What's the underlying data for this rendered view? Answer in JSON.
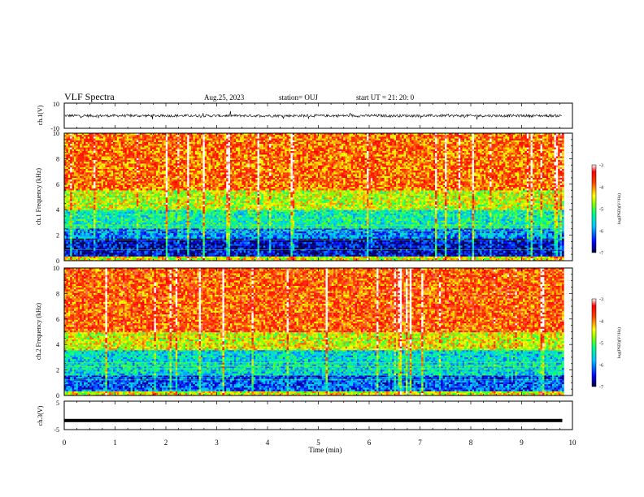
{
  "header": {
    "title": "VLF Spectra",
    "date": "Aug.25, 2023",
    "station": "station= OUJ",
    "start": "start  UT  =   21: 20: 0"
  },
  "chart_data": [
    {
      "type": "line",
      "panel": "ch1-waveform",
      "ylabel": "ch.1(V)",
      "ylim": [
        -10,
        10
      ],
      "yticks": [
        "10",
        "-10"
      ],
      "xlim": [
        0,
        10
      ],
      "baseline": 0,
      "note_series": "dense noisy waveform around 0 V with spikes near ±2 V"
    },
    {
      "type": "heatmap",
      "panel": "ch1-spectrogram",
      "ylabel": "ch.1 Frequency  (kHz)",
      "ylim": [
        0,
        10
      ],
      "yticks": [
        "0",
        "2",
        "4",
        "6",
        "8",
        "10"
      ],
      "xlim": [
        0,
        10
      ],
      "colorbar": {
        "label": "log(PSD)(V²/Hz)",
        "range": [
          -7,
          -3
        ],
        "ticks": [
          "-3",
          "-4",
          "-5",
          "-6",
          "-7"
        ]
      },
      "bands_log_psd": [
        {
          "f": [
            0.0,
            0.3
          ],
          "level": -4.5
        },
        {
          "f": [
            0.3,
            1.8
          ],
          "level": -6.6
        },
        {
          "f": [
            1.8,
            2.6
          ],
          "level": -6.0
        },
        {
          "f": [
            2.6,
            4.0
          ],
          "level": -5.4
        },
        {
          "f": [
            4.0,
            5.5
          ],
          "level": -4.6
        },
        {
          "f": [
            5.5,
            10.0
          ],
          "level": -3.9
        }
      ]
    },
    {
      "type": "heatmap",
      "panel": "ch2-spectrogram",
      "ylabel": "ch.2 Frequency  (kHz)",
      "ylim": [
        0,
        10
      ],
      "yticks": [
        "0",
        "2",
        "4",
        "6",
        "8",
        "10"
      ],
      "xlim": [
        0,
        10
      ],
      "colorbar": {
        "label": "log(PSD)(V²/Hz)",
        "range": [
          -7,
          -3
        ],
        "ticks": [
          "-3",
          "-4",
          "-5",
          "-6",
          "-7"
        ]
      },
      "bands_log_psd": [
        {
          "f": [
            0.0,
            0.3
          ],
          "level": -4.5
        },
        {
          "f": [
            0.3,
            1.6
          ],
          "level": -6.2
        },
        {
          "f": [
            1.6,
            3.6
          ],
          "level": -5.6
        },
        {
          "f": [
            3.6,
            5.0
          ],
          "level": -4.5
        },
        {
          "f": [
            5.0,
            10.0
          ],
          "level": -3.8
        }
      ]
    },
    {
      "type": "line",
      "panel": "ch3-waveform",
      "ylabel": "ch.3(V)",
      "ylim": [
        -5,
        5
      ],
      "yticks": [
        "5",
        "-5"
      ],
      "xlim": [
        0,
        10
      ],
      "value": -1.8,
      "xlabel": "Time  (min)",
      "xticks": [
        "0",
        "1",
        "2",
        "3",
        "4",
        "5",
        "6",
        "7",
        "8",
        "9",
        "10"
      ],
      "data_end_min": 9.8
    }
  ]
}
